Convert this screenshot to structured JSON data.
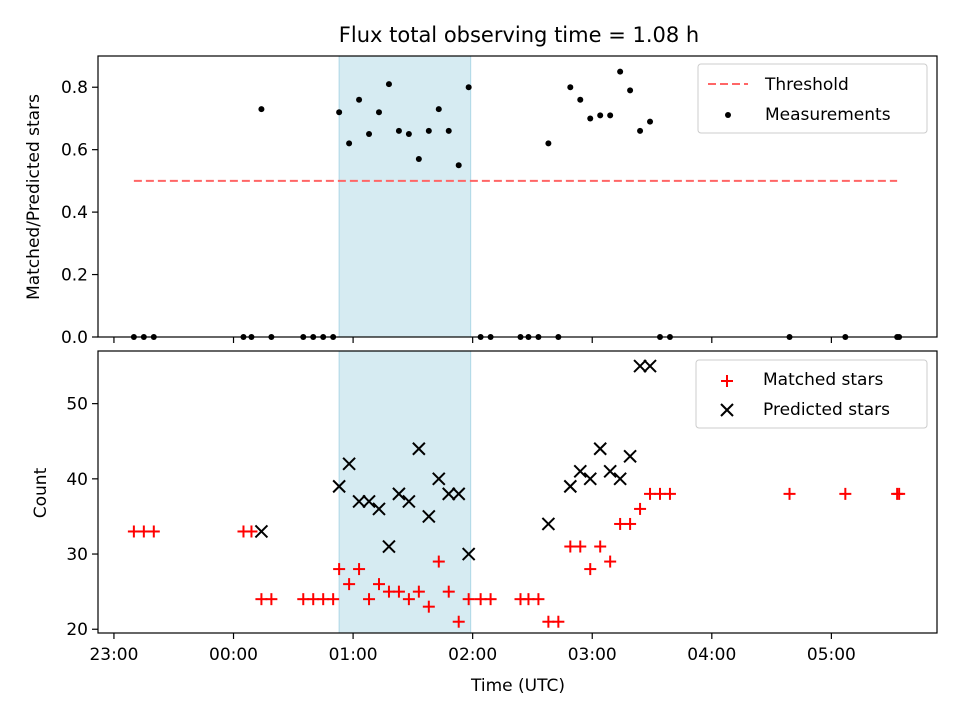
{
  "colors": {
    "band": "#add8e6",
    "threshold": "#ff6666",
    "matched": "#ff0000",
    "predicted": "#000000",
    "measurement": "#000000"
  },
  "chart_data": [
    {
      "type": "scatter",
      "title": "Flux total observing time = 1.08 h",
      "xlabel": "",
      "ylabel": "Matched/Predicted stars",
      "xlim": [
        "22:52",
        "05:53"
      ],
      "ylim": [
        0,
        0.9
      ],
      "yticks": [
        0.0,
        0.2,
        0.4,
        0.6,
        0.8
      ],
      "ytick_labels": [
        "0.0",
        "0.2",
        "0.4",
        "0.6",
        "0.8"
      ],
      "legend": "top-right",
      "highlight_span": [
        "00:53",
        "01:59"
      ],
      "threshold": {
        "name": "Threshold",
        "y": 0.5,
        "x": [
          "23:10",
          "05:33"
        ]
      },
      "series": [
        {
          "name": "Measurements",
          "x": [
            "23:10",
            "23:15",
            "23:20",
            "00:05",
            "00:09",
            "00:14",
            "00:19",
            "00:35",
            "00:40",
            "00:45",
            "00:50",
            "00:53",
            "00:58",
            "01:03",
            "01:08",
            "01:13",
            "01:18",
            "01:23",
            "01:28",
            "01:33",
            "01:38",
            "01:43",
            "01:48",
            "01:53",
            "01:58",
            "02:04",
            "02:09",
            "02:24",
            "02:28",
            "02:33",
            "02:38",
            "02:43",
            "02:49",
            "02:54",
            "02:59",
            "03:04",
            "03:09",
            "03:14",
            "03:19",
            "03:24",
            "03:29",
            "03:34",
            "03:39",
            "04:39",
            "05:07",
            "05:33",
            "05:34"
          ],
          "y": [
            0,
            0,
            0,
            0,
            0,
            0.73,
            0,
            0,
            0,
            0,
            0,
            0.72,
            0.62,
            0.76,
            0.65,
            0.72,
            0.81,
            0.66,
            0.65,
            0.57,
            0.66,
            0.73,
            0.66,
            0.55,
            0.8,
            0,
            0,
            0,
            0,
            0,
            0.62,
            0,
            0.8,
            0.76,
            0.7,
            0.71,
            0.71,
            0.85,
            0.79,
            0.66,
            0.69,
            0,
            0,
            0,
            0,
            0,
            0
          ]
        }
      ]
    },
    {
      "type": "scatter",
      "title": "",
      "xlabel": "Time (UTC)",
      "ylabel": "Count",
      "xlim": [
        "22:52",
        "05:53"
      ],
      "ylim": [
        19.5,
        57
      ],
      "yticks": [
        20,
        30,
        40,
        50
      ],
      "xticks": [
        "23:00",
        "00:00",
        "01:00",
        "02:00",
        "03:00",
        "04:00",
        "05:00"
      ],
      "legend": "top-right",
      "highlight_span": [
        "00:53",
        "01:59"
      ],
      "series": [
        {
          "name": "Matched stars",
          "marker": "plus",
          "x": [
            "23:10",
            "23:15",
            "23:20",
            "00:05",
            "00:09",
            "00:14",
            "00:19",
            "00:35",
            "00:40",
            "00:45",
            "00:50",
            "00:53",
            "00:58",
            "01:03",
            "01:08",
            "01:13",
            "01:18",
            "01:23",
            "01:28",
            "01:33",
            "01:38",
            "01:43",
            "01:48",
            "01:53",
            "01:58",
            "02:04",
            "02:09",
            "02:24",
            "02:28",
            "02:33",
            "02:38",
            "02:43",
            "02:49",
            "02:54",
            "02:59",
            "03:04",
            "03:09",
            "03:14",
            "03:19",
            "03:24",
            "03:29",
            "03:34",
            "03:39",
            "04:39",
            "05:07",
            "05:33",
            "05:34"
          ],
          "y": [
            33,
            33,
            33,
            33,
            33,
            24,
            24,
            24,
            24,
            24,
            24,
            28,
            26,
            28,
            24,
            26,
            25,
            25,
            24,
            25,
            23,
            29,
            25,
            21,
            24,
            24,
            24,
            24,
            24,
            24,
            21,
            21,
            31,
            31,
            28,
            31,
            29,
            34,
            34,
            36,
            38,
            38,
            38,
            38,
            38,
            38,
            38
          ]
        },
        {
          "name": "Predicted stars",
          "marker": "x",
          "x": [
            "00:14",
            "00:53",
            "00:58",
            "01:03",
            "01:08",
            "01:13",
            "01:18",
            "01:23",
            "01:28",
            "01:33",
            "01:38",
            "01:43",
            "01:48",
            "01:53",
            "01:58",
            "02:38",
            "02:49",
            "02:54",
            "02:59",
            "03:04",
            "03:09",
            "03:14",
            "03:19",
            "03:24",
            "03:29"
          ],
          "y": [
            33,
            39,
            42,
            37,
            37,
            36,
            31,
            38,
            37,
            44,
            35,
            40,
            38,
            38,
            30,
            34,
            39,
            41,
            40,
            44,
            41,
            40,
            43,
            55,
            55
          ]
        }
      ]
    }
  ]
}
